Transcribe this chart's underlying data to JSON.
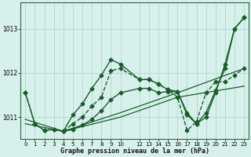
{
  "title": "Graphe pression niveau de la mer (hPa)",
  "background_color": "#d8f0ec",
  "grid_color": "#b0d8d0",
  "line_color": "#1a5c2a",
  "ylim": [
    1010.5,
    1013.6
  ],
  "yticks": [
    1011,
    1012,
    1013
  ],
  "xlim": [
    -0.5,
    23.5
  ],
  "xticks": [
    0,
    1,
    2,
    3,
    4,
    5,
    6,
    7,
    8,
    9,
    10,
    12,
    13,
    14,
    15,
    16,
    17,
    18,
    19,
    20,
    21,
    22,
    23
  ],
  "series": [
    {
      "x": [
        0,
        1,
        2,
        3,
        4,
        5,
        6,
        7,
        8,
        9,
        10,
        12,
        13,
        14,
        15,
        16,
        17,
        18,
        19,
        20,
        21,
        22,
        23
      ],
      "y": [
        1011.55,
        1010.85,
        1010.7,
        1010.72,
        1010.68,
        1011.05,
        1011.3,
        1011.65,
        1011.95,
        1012.3,
        1012.2,
        1011.85,
        1011.85,
        1011.75,
        1011.62,
        1011.58,
        1011.05,
        1010.85,
        1011.1,
        1011.6,
        1012.1,
        1013.0,
        1013.25
      ],
      "marker": "D",
      "markersize": 2.5,
      "linewidth": 1.0,
      "linestyle": "-"
    },
    {
      "x": [
        0,
        1,
        2,
        3,
        4,
        5,
        6,
        7,
        8,
        9,
        10,
        12,
        13,
        14,
        15,
        16,
        17,
        18,
        19,
        20,
        21,
        22,
        23
      ],
      "y": [
        1011.55,
        1010.85,
        1010.7,
        1010.72,
        1010.68,
        1010.85,
        1011.0,
        1011.25,
        1011.45,
        1012.05,
        1012.1,
        1011.85,
        1011.85,
        1011.75,
        1011.62,
        1011.45,
        1010.7,
        1010.9,
        1011.55,
        1011.8,
        1011.8,
        1011.95,
        1012.1
      ],
      "marker": "D",
      "markersize": 2.5,
      "linewidth": 1.0,
      "linestyle": "--"
    },
    {
      "x": [
        4,
        5,
        6,
        7,
        8,
        9,
        10,
        12,
        13,
        14,
        15,
        16,
        17,
        18,
        19,
        20,
        21,
        22,
        23
      ],
      "y": [
        1010.68,
        1010.72,
        1010.82,
        1010.95,
        1011.15,
        1011.4,
        1011.55,
        1011.65,
        1011.65,
        1011.55,
        1011.58,
        1011.58,
        1011.1,
        1010.85,
        1011.0,
        1011.55,
        1012.2,
        1013.0,
        1013.25
      ],
      "marker": "D",
      "markersize": 2.5,
      "linewidth": 1.0,
      "linestyle": "-"
    },
    {
      "x": [
        0,
        4,
        10,
        16,
        23
      ],
      "y": [
        1010.95,
        1010.68,
        1011.1,
        1011.55,
        1012.1
      ],
      "marker": null,
      "markersize": 0,
      "linewidth": 0.9,
      "linestyle": "-"
    },
    {
      "x": [
        0,
        4,
        10,
        16,
        23
      ],
      "y": [
        1010.85,
        1010.68,
        1011.0,
        1011.45,
        1011.7
      ],
      "marker": null,
      "markersize": 0,
      "linewidth": 0.9,
      "linestyle": "-"
    }
  ]
}
